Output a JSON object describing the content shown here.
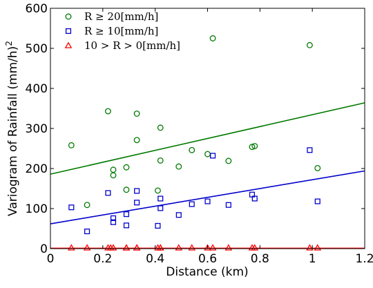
{
  "chart_data": {
    "type": "scatter",
    "xlabel": "Distance (km)",
    "ylabel_prefix": "Variogram of Rainfall (mm/h)",
    "ylabel_superscript": "2",
    "xlim": [
      0,
      1.2
    ],
    "ylim": [
      0,
      600
    ],
    "xticks": [
      "0",
      "0.2",
      "0.4",
      "0.6",
      "0.8",
      "1",
      "1.2"
    ],
    "yticks": [
      "0",
      "100",
      "200",
      "300",
      "400",
      "500",
      "600"
    ],
    "grid": false,
    "legend_position": "top-left",
    "series": [
      {
        "name": "R ≥ 20[mm/h]",
        "marker": "circle",
        "color": "#007a00",
        "points": [
          [
            0.08,
            258
          ],
          [
            0.14,
            109
          ],
          [
            0.22,
            343
          ],
          [
            0.24,
            197
          ],
          [
            0.24,
            183
          ],
          [
            0.29,
            203
          ],
          [
            0.29,
            147
          ],
          [
            0.33,
            271
          ],
          [
            0.33,
            337
          ],
          [
            0.41,
            145
          ],
          [
            0.42,
            220
          ],
          [
            0.42,
            302
          ],
          [
            0.49,
            205
          ],
          [
            0.54,
            246
          ],
          [
            0.6,
            236
          ],
          [
            0.62,
            525
          ],
          [
            0.68,
            219
          ],
          [
            0.77,
            254
          ],
          [
            0.78,
            256
          ],
          [
            0.99,
            508
          ],
          [
            1.02,
            201
          ]
        ],
        "fit_line": [
          [
            0,
            186
          ],
          [
            1.2,
            364
          ]
        ]
      },
      {
        "name": "R ≥ 10[mm/h]",
        "marker": "square",
        "color": "#0000cc",
        "points": [
          [
            0.08,
            103
          ],
          [
            0.14,
            43
          ],
          [
            0.22,
            139
          ],
          [
            0.24,
            76
          ],
          [
            0.24,
            66
          ],
          [
            0.29,
            86
          ],
          [
            0.29,
            58
          ],
          [
            0.33,
            144
          ],
          [
            0.33,
            115
          ],
          [
            0.41,
            57
          ],
          [
            0.42,
            101
          ],
          [
            0.42,
            125
          ],
          [
            0.49,
            84
          ],
          [
            0.54,
            111
          ],
          [
            0.6,
            118
          ],
          [
            0.62,
            232
          ],
          [
            0.68,
            109
          ],
          [
            0.77,
            135
          ],
          [
            0.78,
            125
          ],
          [
            0.99,
            246
          ],
          [
            1.02,
            118
          ]
        ],
        "fit_line": [
          [
            0,
            62
          ],
          [
            1.2,
            194
          ]
        ]
      },
      {
        "name": "10 > R > 0[mm/h]",
        "marker": "triangle",
        "color": "#ff0000",
        "points": [
          [
            0.08,
            2
          ],
          [
            0.14,
            2
          ],
          [
            0.22,
            2
          ],
          [
            0.23,
            2
          ],
          [
            0.24,
            2
          ],
          [
            0.29,
            2
          ],
          [
            0.29,
            2
          ],
          [
            0.33,
            2
          ],
          [
            0.33,
            2
          ],
          [
            0.41,
            2
          ],
          [
            0.42,
            2
          ],
          [
            0.42,
            2
          ],
          [
            0.49,
            2
          ],
          [
            0.54,
            2
          ],
          [
            0.6,
            2
          ],
          [
            0.62,
            2
          ],
          [
            0.68,
            2
          ],
          [
            0.77,
            2
          ],
          [
            0.78,
            2
          ],
          [
            0.99,
            2
          ],
          [
            1.02,
            2
          ]
        ],
        "fit_line": [
          [
            0,
            1
          ],
          [
            1.2,
            1
          ]
        ]
      }
    ]
  }
}
